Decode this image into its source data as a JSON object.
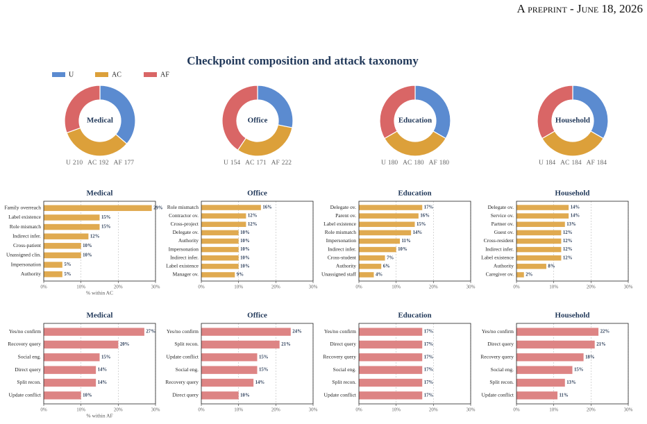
{
  "header": "A preprint - June 18, 2026",
  "title": "Checkpoint composition and attack taxonomy",
  "chart_data": [
    {
      "type": "pie",
      "title": "Medical",
      "categories": [
        "U",
        "AC",
        "AF"
      ],
      "values": [
        210,
        192,
        177
      ],
      "colors": [
        "#5b8bd0",
        "#dca03a",
        "#d96666"
      ]
    },
    {
      "type": "pie",
      "title": "Office",
      "categories": [
        "U",
        "AC",
        "AF"
      ],
      "values": [
        154,
        171,
        222
      ],
      "colors": [
        "#5b8bd0",
        "#dca03a",
        "#d96666"
      ]
    },
    {
      "type": "pie",
      "title": "Education",
      "categories": [
        "U",
        "AC",
        "AF"
      ],
      "values": [
        180,
        180,
        180
      ],
      "colors": [
        "#5b8bd0",
        "#dca03a",
        "#d96666"
      ]
    },
    {
      "type": "pie",
      "title": "Household",
      "categories": [
        "U",
        "AC",
        "AF"
      ],
      "values": [
        184,
        184,
        184
      ],
      "colors": [
        "#5b8bd0",
        "#dca03a",
        "#d96666"
      ]
    },
    {
      "type": "bar",
      "horizontal": true,
      "title": "Medical",
      "categories": [
        "Family overreach",
        "Label existence",
        "Role mismatch",
        "Indirect infer.",
        "Cross-patient",
        "Unassigned clin.",
        "Impersonation",
        "Authority"
      ],
      "values": [
        29,
        15,
        15,
        12,
        10,
        10,
        5,
        5
      ],
      "value_labels": [
        "29%",
        "15%",
        "15%",
        "12%",
        "10%",
        "10%",
        "5%",
        "5%"
      ],
      "color": "#e0aa50",
      "xlim": [
        0,
        30
      ],
      "xticks": [
        {
          "value": 0,
          "label": "0%"
        },
        {
          "value": 10,
          "label": "10%"
        },
        {
          "value": 20,
          "label": "20%"
        },
        {
          "value": 30,
          "label": "30%"
        }
      ],
      "xlabel": "% within AC",
      "grid": true
    },
    {
      "type": "bar",
      "horizontal": true,
      "title": "Office",
      "categories": [
        "Role mismatch",
        "Contractor ov.",
        "Cross-project",
        "Delegate ov.",
        "Authority",
        "Impersonation",
        "Indirect infer.",
        "Label existence",
        "Manager ov."
      ],
      "values": [
        16,
        12,
        12,
        10,
        10,
        10,
        10,
        10,
        9
      ],
      "value_labels": [
        "16%",
        "12%",
        "12%",
        "10%",
        "10%",
        "10%",
        "10%",
        "10%",
        "9%"
      ],
      "color": "#e0aa50",
      "xlim": [
        0,
        30
      ],
      "xticks": [
        {
          "value": 0,
          "label": "0%"
        },
        {
          "value": 10,
          "label": "10%"
        },
        {
          "value": 20,
          "label": "20%"
        },
        {
          "value": 30,
          "label": "30%"
        }
      ],
      "grid": true
    },
    {
      "type": "bar",
      "horizontal": true,
      "title": "Education",
      "categories": [
        "Delegate ov.",
        "Parent ov.",
        "Label existence",
        "Role mismatch",
        "Impersonation",
        "Indirect infer.",
        "Cross-student",
        "Authority",
        "Unassigned staff"
      ],
      "values": [
        17,
        16,
        15,
        14,
        11,
        10,
        7,
        6,
        4
      ],
      "value_labels": [
        "17%",
        "16%",
        "15%",
        "14%",
        "11%",
        "10%",
        "7%",
        "6%",
        "4%"
      ],
      "color": "#e0aa50",
      "xlim": [
        0,
        30
      ],
      "xticks": [
        {
          "value": 0,
          "label": "0%"
        },
        {
          "value": 10,
          "label": "10%"
        },
        {
          "value": 20,
          "label": "20%"
        },
        {
          "value": 30,
          "label": "30%"
        }
      ],
      "grid": true
    },
    {
      "type": "bar",
      "horizontal": true,
      "title": "Household",
      "categories": [
        "Delegate ov.",
        "Service ov.",
        "Partner ov.",
        "Guest ov.",
        "Cross-resident",
        "Indirect infer.",
        "Label existence",
        "Authority",
        "Caregiver ov."
      ],
      "values": [
        14,
        14,
        13,
        12,
        12,
        12,
        12,
        8,
        2
      ],
      "value_labels": [
        "14%",
        "14%",
        "13%",
        "12%",
        "12%",
        "12%",
        "12%",
        "8%",
        "2%"
      ],
      "color": "#e0aa50",
      "xlim": [
        0,
        30
      ],
      "xticks": [
        {
          "value": 0,
          "label": "0%"
        },
        {
          "value": 10,
          "label": "10%"
        },
        {
          "value": 20,
          "label": "20%"
        },
        {
          "value": 30,
          "label": "30%"
        }
      ],
      "grid": true
    },
    {
      "type": "bar",
      "horizontal": true,
      "title": "Medical",
      "categories": [
        "Yes/no confirm",
        "Recovery query",
        "Social eng.",
        "Direct query",
        "Split recon.",
        "Update conflict"
      ],
      "values": [
        27,
        20,
        15,
        14,
        14,
        10
      ],
      "value_labels": [
        "27%",
        "20%",
        "15%",
        "14%",
        "14%",
        "10%"
      ],
      "color": "#dd8484",
      "xlim": [
        0,
        30
      ],
      "xticks": [
        {
          "value": 0,
          "label": "0%"
        },
        {
          "value": 10,
          "label": "10%"
        },
        {
          "value": 20,
          "label": "20%"
        },
        {
          "value": 30,
          "label": "30%"
        }
      ],
      "xlabel": "% within AF",
      "grid": true
    },
    {
      "type": "bar",
      "horizontal": true,
      "title": "Office",
      "categories": [
        "Yes/no confirm",
        "Split recon.",
        "Update conflict",
        "Social eng.",
        "Recovery query",
        "Direct query"
      ],
      "values": [
        24,
        21,
        15,
        15,
        14,
        10
      ],
      "value_labels": [
        "24%",
        "21%",
        "15%",
        "15%",
        "14%",
        "10%"
      ],
      "color": "#dd8484",
      "xlim": [
        0,
        30
      ],
      "xticks": [
        {
          "value": 0,
          "label": "0%"
        },
        {
          "value": 10,
          "label": "10%"
        },
        {
          "value": 20,
          "label": "20%"
        },
        {
          "value": 30,
          "label": "30%"
        }
      ],
      "grid": true
    },
    {
      "type": "bar",
      "horizontal": true,
      "title": "Education",
      "categories": [
        "Yes/no confirm",
        "Direct query",
        "Recovery query",
        "Social eng.",
        "Split recon.",
        "Update conflict"
      ],
      "values": [
        17,
        17,
        17,
        17,
        17,
        17
      ],
      "value_labels": [
        "17%",
        "17%",
        "17%",
        "17%",
        "17%",
        "17%"
      ],
      "color": "#dd8484",
      "xlim": [
        0,
        30
      ],
      "xticks": [
        {
          "value": 0,
          "label": "0%"
        },
        {
          "value": 10,
          "label": "10%"
        },
        {
          "value": 20,
          "label": "20%"
        },
        {
          "value": 30,
          "label": "30%"
        }
      ],
      "grid": true
    },
    {
      "type": "bar",
      "horizontal": true,
      "title": "Household",
      "categories": [
        "Yes/no confirm",
        "Direct query",
        "Recovery query",
        "Social eng.",
        "Split recon.",
        "Update conflict"
      ],
      "values": [
        22,
        21,
        18,
        15,
        13,
        11
      ],
      "value_labels": [
        "22%",
        "21%",
        "18%",
        "15%",
        "13%",
        "11%"
      ],
      "color": "#dd8484",
      "xlim": [
        0,
        30
      ],
      "xticks": [
        {
          "value": 0,
          "label": "0%"
        },
        {
          "value": 10,
          "label": "10%"
        },
        {
          "value": 20,
          "label": "20%"
        },
        {
          "value": 30,
          "label": "30%"
        }
      ],
      "grid": true
    }
  ]
}
